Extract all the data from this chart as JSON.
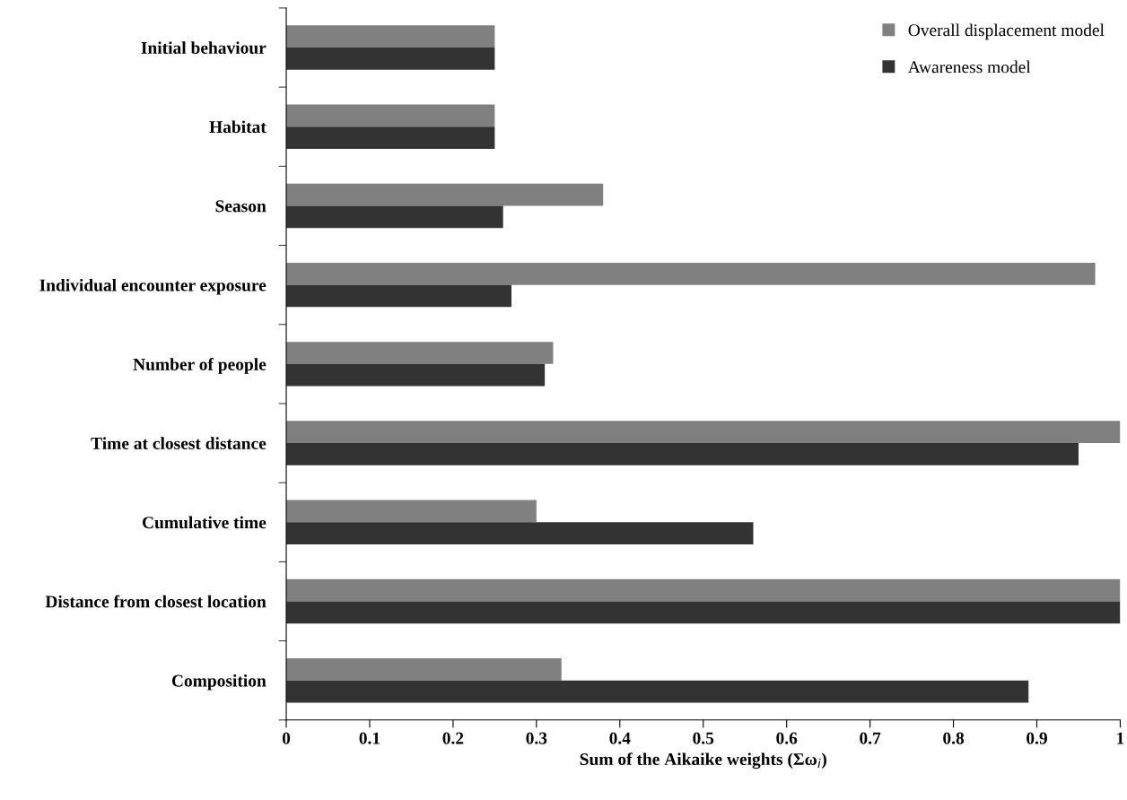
{
  "chart_data": {
    "type": "bar",
    "orientation": "horizontal",
    "categories": [
      "Initial behaviour",
      "Habitat",
      "Season",
      "Individual encounter exposure",
      "Number of people",
      "Time at closest distance",
      "Cumulative time",
      "Distance from closest location",
      "Composition"
    ],
    "series": [
      {
        "name": "Overall displacement model",
        "color": "#808080",
        "values": [
          0.25,
          0.25,
          0.38,
          0.97,
          0.32,
          1.0,
          0.3,
          1.0,
          0.33
        ]
      },
      {
        "name": "Awareness model",
        "color": "#333333",
        "values": [
          0.25,
          0.25,
          0.26,
          0.27,
          0.31,
          0.95,
          0.56,
          1.0,
          0.89
        ]
      }
    ],
    "xlabel": "Sum of the Aikaike weights (Σω$_{i}$)",
    "xlim": [
      0,
      1
    ],
    "xticks": [
      0,
      0.1,
      0.2,
      0.3,
      0.4,
      0.5,
      0.6,
      0.7,
      0.8,
      0.9,
      1
    ],
    "grid": false,
    "legend": "top right"
  }
}
